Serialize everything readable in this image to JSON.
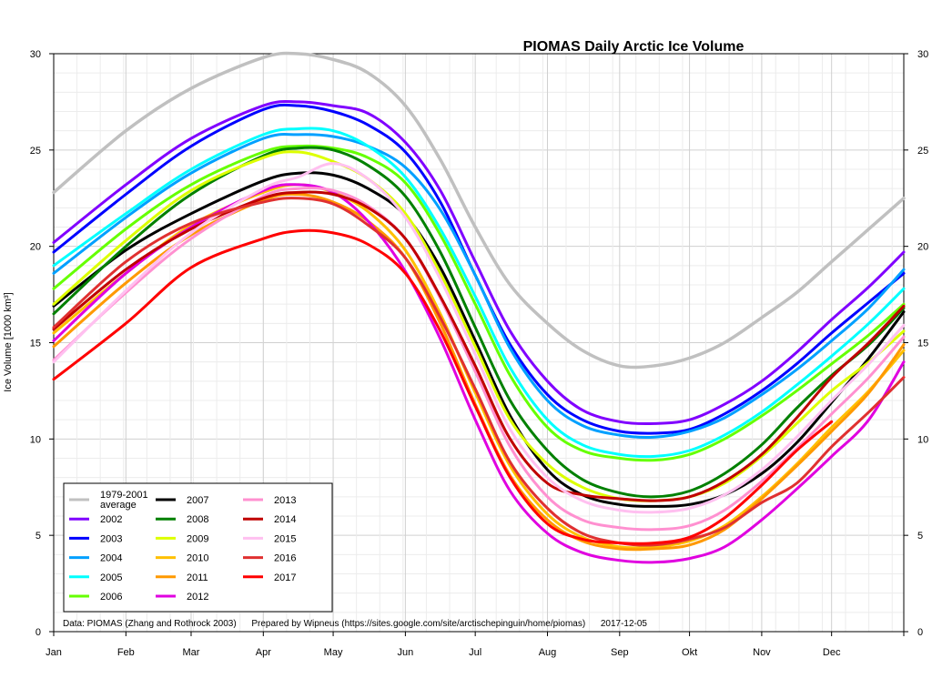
{
  "chart_data": {
    "type": "line",
    "title": "PIOMAS Daily Arctic Ice Volume",
    "ylabel": "Ice Volume [1000 km³]",
    "xlabel": "",
    "ylim": [
      0,
      30
    ],
    "yticks": [
      0,
      5,
      10,
      15,
      20,
      25,
      30
    ],
    "xlim": [
      0,
      365
    ],
    "x_ticks": [
      {
        "label": "Jan",
        "day": 0
      },
      {
        "label": "Feb",
        "day": 31
      },
      {
        "label": "Mar",
        "day": 59
      },
      {
        "label": "Apr",
        "day": 90
      },
      {
        "label": "May",
        "day": 120
      },
      {
        "label": "Jun",
        "day": 151
      },
      {
        "label": "Jul",
        "day": 181
      },
      {
        "label": "Aug",
        "day": 212
      },
      {
        "label": "Sep",
        "day": 243
      },
      {
        "label": "Okt",
        "day": 273
      },
      {
        "label": "Nov",
        "day": 304
      },
      {
        "label": "Dec",
        "day": 334
      }
    ],
    "grid": true,
    "legend_placement": "bottom-left",
    "credit": "Data: PIOMAS (Zhang and Rothrock 2003)      Prepared by Wipneus (https://sites.google.com/site/arctischepinguin/home/piomas)      2017-12-05",
    "series": [
      {
        "name": "1979-2001 average",
        "color": "#c0c0c0",
        "x": [
          0,
          31,
          59,
          90,
          105,
          120,
          135,
          151,
          166,
          181,
          196,
          212,
          227,
          243,
          258,
          273,
          288,
          304,
          319,
          334,
          350,
          365
        ],
        "values": [
          22.8,
          26.0,
          28.2,
          29.8,
          30.0,
          29.7,
          29.0,
          27.3,
          24.5,
          21.0,
          18.0,
          16.0,
          14.6,
          13.8,
          13.8,
          14.2,
          15.0,
          16.3,
          17.6,
          19.2,
          20.9,
          22.5
        ]
      },
      {
        "name": "2002",
        "color": "#8000ff",
        "x": [
          0,
          31,
          59,
          90,
          105,
          120,
          135,
          151,
          166,
          181,
          196,
          212,
          227,
          243,
          258,
          273,
          288,
          304,
          319,
          334,
          350,
          365
        ],
        "values": [
          20.2,
          23.2,
          25.6,
          27.3,
          27.5,
          27.3,
          26.9,
          25.4,
          22.9,
          19.2,
          15.6,
          13.0,
          11.5,
          10.9,
          10.8,
          11.0,
          11.8,
          13.0,
          14.5,
          16.2,
          17.9,
          19.7
        ]
      },
      {
        "name": "2003",
        "color": "#0000ff",
        "x": [
          0,
          31,
          59,
          90,
          105,
          120,
          135,
          151,
          166,
          181,
          196,
          212,
          227,
          243,
          258,
          273,
          288,
          304,
          319,
          334,
          350,
          365
        ],
        "values": [
          19.7,
          22.7,
          25.2,
          27.1,
          27.3,
          27.0,
          26.3,
          24.9,
          22.3,
          18.5,
          14.9,
          12.3,
          11.0,
          10.4,
          10.3,
          10.5,
          11.3,
          12.5,
          13.9,
          15.5,
          17.1,
          18.6
        ]
      },
      {
        "name": "2004",
        "color": "#00a0ff",
        "x": [
          0,
          31,
          59,
          90,
          105,
          120,
          135,
          151,
          166,
          181,
          196,
          212,
          227,
          243,
          258,
          273,
          288,
          304,
          319,
          334,
          350,
          365
        ],
        "values": [
          18.6,
          21.5,
          23.8,
          25.6,
          25.8,
          25.7,
          25.2,
          24.1,
          21.9,
          18.5,
          14.7,
          12.0,
          10.7,
          10.2,
          10.1,
          10.4,
          11.1,
          12.3,
          13.6,
          15.1,
          16.8,
          18.8
        ]
      },
      {
        "name": "2005",
        "color": "#00ffff",
        "x": [
          0,
          31,
          59,
          90,
          105,
          120,
          135,
          151,
          166,
          181,
          196,
          212,
          227,
          243,
          258,
          273,
          288,
          304,
          319,
          334,
          350,
          365
        ],
        "values": [
          19.0,
          21.7,
          24.0,
          25.8,
          26.1,
          26.0,
          25.2,
          23.6,
          20.9,
          17.4,
          13.7,
          11.0,
          9.7,
          9.2,
          9.1,
          9.4,
          10.2,
          11.4,
          12.8,
          14.3,
          16.0,
          17.8
        ]
      },
      {
        "name": "2006",
        "color": "#66ff00",
        "x": [
          0,
          31,
          59,
          90,
          105,
          120,
          135,
          151,
          166,
          181,
          196,
          212,
          227,
          243,
          258,
          273,
          288,
          304,
          319,
          334,
          350,
          365
        ],
        "values": [
          17.8,
          20.9,
          23.2,
          24.9,
          25.2,
          25.1,
          24.6,
          23.3,
          20.6,
          17.0,
          13.3,
          10.6,
          9.4,
          9.0,
          8.9,
          9.2,
          10.0,
          11.2,
          12.5,
          13.9,
          15.4,
          17.0
        ]
      },
      {
        "name": "2007",
        "color": "#000000",
        "x": [
          0,
          31,
          59,
          90,
          105,
          120,
          135,
          151,
          166,
          181,
          196,
          212,
          227,
          243,
          258,
          273,
          288,
          304,
          319,
          334,
          350,
          365
        ],
        "values": [
          16.9,
          19.8,
          21.7,
          23.4,
          23.8,
          23.7,
          23.0,
          21.6,
          18.9,
          15.1,
          11.2,
          8.4,
          7.1,
          6.6,
          6.5,
          6.6,
          7.1,
          8.2,
          9.8,
          11.9,
          14.2,
          16.6
        ]
      },
      {
        "name": "2008",
        "color": "#008000",
        "x": [
          0,
          31,
          59,
          90,
          105,
          120,
          135,
          151,
          166,
          181,
          196,
          212,
          227,
          243,
          258,
          273,
          288,
          304,
          319,
          334,
          350,
          365
        ],
        "values": [
          16.5,
          20.0,
          22.7,
          24.7,
          25.1,
          25.0,
          24.2,
          22.6,
          19.7,
          15.8,
          12.0,
          9.4,
          7.9,
          7.2,
          7.0,
          7.3,
          8.2,
          9.7,
          11.6,
          13.3,
          14.9,
          16.8
        ]
      },
      {
        "name": "2009",
        "color": "#ddff00",
        "x": [
          0,
          31,
          59,
          90,
          105,
          120,
          135,
          151,
          166,
          181,
          196,
          212,
          227,
          243,
          258,
          273,
          288,
          304,
          319,
          334,
          350,
          365
        ],
        "values": [
          17.0,
          20.3,
          22.9,
          24.6,
          24.9,
          24.4,
          23.5,
          21.7,
          18.6,
          14.8,
          11.0,
          8.7,
          7.5,
          6.9,
          6.8,
          7.0,
          7.7,
          9.1,
          10.8,
          12.5,
          14.0,
          15.6
        ]
      },
      {
        "name": "2010",
        "color": "#ffc000",
        "x": [
          0,
          31,
          59,
          90,
          105,
          120,
          135,
          151,
          166,
          181,
          196,
          212,
          227,
          243,
          258,
          273,
          288,
          304,
          319,
          334,
          350,
          365
        ],
        "values": [
          15.5,
          18.6,
          21.1,
          22.8,
          23.2,
          22.8,
          21.8,
          19.8,
          16.5,
          12.4,
          8.6,
          6.1,
          4.9,
          4.4,
          4.4,
          4.7,
          5.5,
          7.0,
          8.7,
          10.6,
          12.5,
          14.6
        ]
      },
      {
        "name": "2011",
        "color": "#ff9900",
        "x": [
          0,
          31,
          59,
          90,
          105,
          120,
          135,
          151,
          166,
          181,
          196,
          212,
          227,
          243,
          258,
          273,
          288,
          304,
          319,
          334,
          350,
          365
        ],
        "values": [
          14.8,
          18.1,
          20.6,
          22.4,
          22.7,
          22.3,
          21.3,
          19.4,
          16.0,
          11.8,
          8.1,
          5.8,
          4.7,
          4.3,
          4.3,
          4.5,
          5.3,
          6.9,
          8.6,
          10.4,
          12.4,
          14.9
        ]
      },
      {
        "name": "2012",
        "color": "#e000e0",
        "x": [
          0,
          31,
          59,
          90,
          105,
          120,
          135,
          151,
          166,
          181,
          196,
          212,
          227,
          243,
          258,
          273,
          288,
          304,
          319,
          334,
          350,
          365
        ],
        "values": [
          15.1,
          18.6,
          21.0,
          22.9,
          23.2,
          22.8,
          21.3,
          18.7,
          15.2,
          11.0,
          7.3,
          5.1,
          4.1,
          3.7,
          3.6,
          3.8,
          4.4,
          5.8,
          7.4,
          9.1,
          11.0,
          14.0
        ]
      },
      {
        "name": "2013",
        "color": "#ff90d0",
        "x": [
          0,
          31,
          59,
          90,
          105,
          120,
          135,
          151,
          166,
          181,
          196,
          212,
          227,
          243,
          258,
          273,
          288,
          304,
          319,
          334,
          350,
          365
        ],
        "values": [
          14.1,
          17.6,
          20.4,
          22.6,
          23.0,
          22.9,
          22.1,
          20.4,
          17.3,
          13.5,
          9.6,
          7.0,
          5.8,
          5.4,
          5.3,
          5.5,
          6.3,
          7.8,
          9.5,
          11.3,
          13.2,
          15.3
        ]
      },
      {
        "name": "2014",
        "color": "#c00000",
        "x": [
          0,
          31,
          59,
          90,
          105,
          120,
          135,
          151,
          166,
          181,
          196,
          212,
          227,
          243,
          258,
          273,
          288,
          304,
          319,
          334,
          350,
          365
        ],
        "values": [
          15.7,
          18.8,
          20.9,
          22.5,
          22.8,
          22.7,
          22.0,
          20.4,
          17.4,
          13.8,
          10.0,
          7.7,
          7.1,
          6.9,
          6.8,
          7.0,
          7.8,
          9.2,
          11.1,
          13.2,
          15.0,
          16.9
        ]
      },
      {
        "name": "2015",
        "color": "#ffc0f0",
        "x": [
          0,
          31,
          59,
          90,
          105,
          120,
          135,
          151,
          166,
          181,
          196,
          212,
          227,
          243,
          258,
          273,
          288,
          304,
          319,
          334,
          350,
          365
        ],
        "values": [
          14.0,
          17.7,
          20.7,
          23.0,
          23.6,
          24.3,
          23.5,
          21.5,
          18.3,
          14.4,
          10.5,
          8.0,
          6.8,
          6.3,
          6.2,
          6.4,
          7.1,
          8.4,
          10.1,
          12.0,
          13.9,
          15.9
        ]
      },
      {
        "name": "2016",
        "color": "#e03030",
        "x": [
          0,
          31,
          59,
          90,
          105,
          120,
          135,
          151,
          166,
          181,
          196,
          212,
          227,
          243,
          258,
          273,
          288,
          304,
          319,
          334,
          350,
          365
        ],
        "values": [
          15.8,
          19.2,
          21.2,
          22.3,
          22.5,
          22.2,
          21.1,
          19.4,
          16.3,
          12.6,
          8.8,
          6.4,
          5.1,
          4.6,
          4.5,
          4.8,
          5.4,
          6.7,
          7.7,
          9.6,
          11.4,
          13.2
        ]
      },
      {
        "name": "2017",
        "color": "#ff0000",
        "x": [
          0,
          31,
          59,
          90,
          105,
          120,
          135,
          151,
          166,
          181,
          196,
          212,
          227,
          243,
          258,
          273,
          288,
          304,
          319,
          334
        ],
        "values": [
          13.1,
          16.0,
          18.9,
          20.4,
          20.8,
          20.7,
          20.1,
          18.6,
          15.6,
          11.7,
          8.0,
          5.6,
          4.8,
          4.6,
          4.6,
          4.9,
          5.9,
          7.6,
          9.4,
          10.9
        ]
      }
    ]
  }
}
